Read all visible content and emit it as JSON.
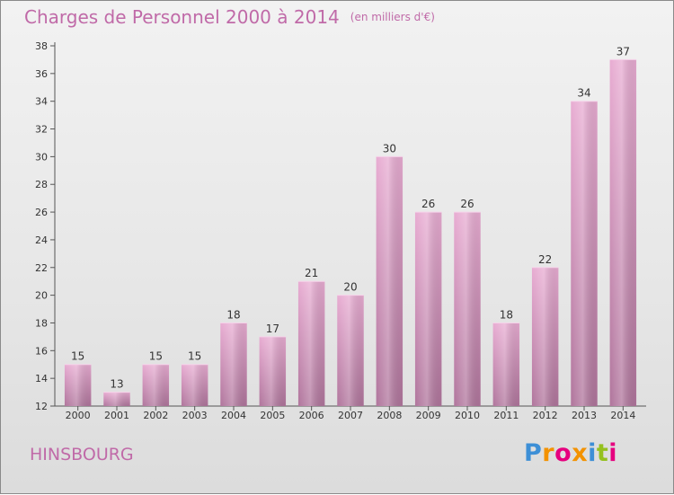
{
  "header": {
    "title": "Charges de Personnel 2000 à 2014",
    "subtitle": "(en milliers d'€)"
  },
  "footer": {
    "place": "HINSBOURG",
    "logo": "Proxiti"
  },
  "colors": {
    "bar_light": "#e8acd2",
    "bar_dark": "#b0759c",
    "title": "#c06aa8",
    "logo": [
      "#3d8fd6",
      "#f39200",
      "#e6007e",
      "#f39200",
      "#3d8fd6",
      "#95c11f",
      "#e6007e"
    ]
  },
  "chart_data": {
    "type": "bar",
    "title": "Charges de Personnel 2000 à 2014",
    "subtitle": "(en milliers d'€)",
    "categories": [
      "2000",
      "2001",
      "2002",
      "2003",
      "2004",
      "2005",
      "2006",
      "2007",
      "2008",
      "2009",
      "2010",
      "2011",
      "2012",
      "2013",
      "2014"
    ],
    "values": [
      15,
      13,
      15,
      15,
      18,
      17,
      21,
      20,
      30,
      26,
      26,
      18,
      22,
      34,
      37
    ],
    "data_labels": [
      "15",
      "13",
      "15",
      "15",
      "18",
      "17",
      "21",
      "20",
      "30",
      "26",
      "26",
      "18",
      "22",
      "34",
      "37"
    ],
    "ylim": [
      12,
      38
    ],
    "yticks": [
      12,
      14,
      16,
      18,
      20,
      22,
      24,
      26,
      28,
      30,
      32,
      34,
      36,
      38
    ],
    "ytick_labels": [
      "12",
      "14",
      "16",
      "18",
      "20",
      "22",
      "24",
      "26",
      "28",
      "30",
      "32",
      "34",
      "36",
      "38"
    ],
    "grid": false,
    "xlabel": "",
    "ylabel": ""
  }
}
